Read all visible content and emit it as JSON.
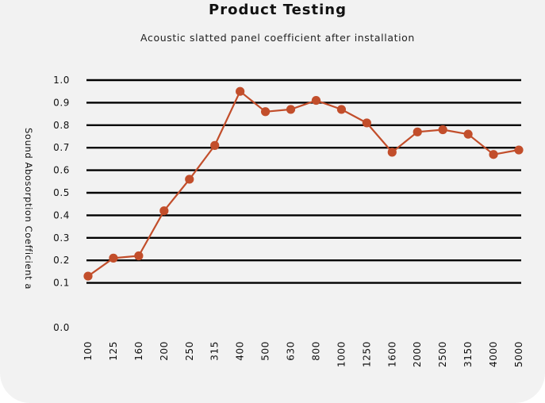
{
  "chart_data": {
    "type": "line",
    "title": "Product Testing",
    "subtitle": "Acoustic slatted panel coefficient after installation",
    "xlabel": "",
    "ylabel": "Sound Abosorption Coefficient a",
    "categories": [
      "100",
      "125",
      "160",
      "200",
      "250",
      "315",
      "400",
      "500",
      "630",
      "800",
      "1000",
      "1250",
      "1600",
      "2000",
      "2500",
      "3150",
      "4000",
      "5000"
    ],
    "series": [
      {
        "values": [
          0.13,
          0.21,
          0.22,
          0.42,
          0.56,
          0.71,
          0.95,
          0.86,
          0.87,
          0.91,
          0.87,
          0.81,
          0.68,
          0.77,
          0.78,
          0.76,
          0.67,
          0.69
        ]
      }
    ],
    "ylim": [
      0.0,
      1.0
    ],
    "yticks": [
      "0.0",
      "0.1",
      "0.2",
      "0.3",
      "0.4",
      "0.5",
      "0.6",
      "0.7",
      "0.8",
      "0.9",
      "1.0"
    ],
    "grid": true,
    "legend": "none",
    "colors": {
      "line": "#c24e2b",
      "marker": "#c24e2b",
      "grid": "#000000",
      "background": "#f2f2f2"
    }
  }
}
